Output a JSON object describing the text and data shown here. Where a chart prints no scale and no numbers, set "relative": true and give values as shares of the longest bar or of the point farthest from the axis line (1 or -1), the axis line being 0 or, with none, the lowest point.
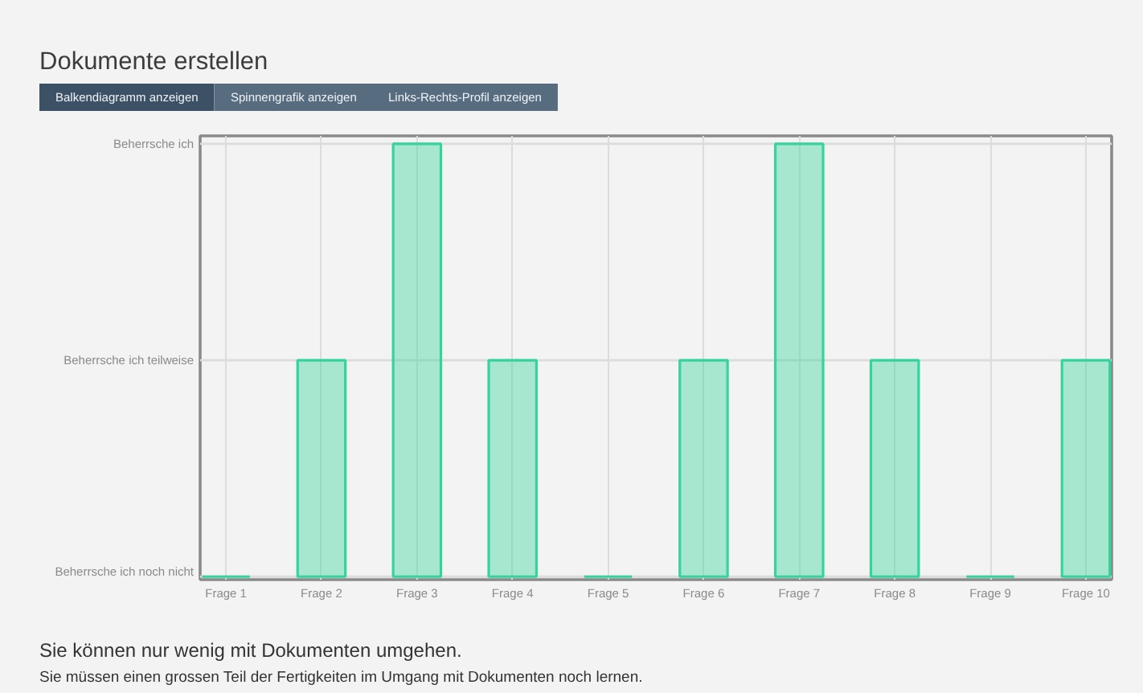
{
  "chart_data": {
    "type": "bar",
    "title": "Dokumente erstellen",
    "categories": [
      "Frage 1",
      "Frage 2",
      "Frage 3",
      "Frage 4",
      "Frage 5",
      "Frage 6",
      "Frage 7",
      "Frage 8",
      "Frage 9",
      "Frage 10"
    ],
    "values": [
      0,
      0.5,
      1,
      0.5,
      0,
      0.5,
      1,
      0.5,
      0,
      0.5
    ],
    "color": "#35d49c",
    "relative": true,
    "ref_lines": [
      {
        "axis": "y",
        "value": 1,
        "label": "Beherrsche ich"
      },
      {
        "axis": "y",
        "value": 0.5,
        "label": "Beherrsche ich teilweise"
      },
      {
        "axis": "y",
        "value": 0,
        "label": "Beherrsche ich noch nicht"
      }
    ],
    "grid": "x",
    "annotations": [
      "Balkendiagramm anzeigen",
      "Spinnengrafik anzeigen",
      "Links-Rechts-Profil anzeigen",
      "Sie können nur wenig mit Dokumenten umgehen.",
      "Sie müssen einen grossen Teil der Fertigkeiten im Umgang mit Dokumenten noch lernen."
    ]
  }
}
